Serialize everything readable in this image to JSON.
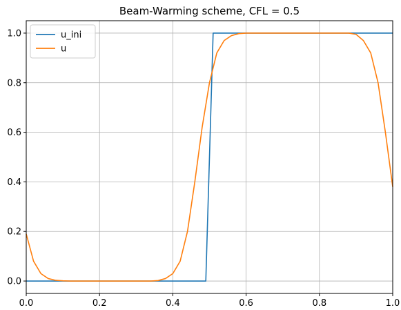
{
  "chart_data": {
    "type": "line",
    "title": "Beam-Warming scheme, CFL = 0.5",
    "xlabel": "",
    "ylabel": "",
    "xlim": [
      0,
      1
    ],
    "ylim": [
      -0.05,
      1.05
    ],
    "xticks": [
      0,
      0.2,
      0.4,
      0.6,
      0.8,
      1
    ],
    "xtick_labels": [
      "0.0",
      "0.2",
      "0.4",
      "0.6",
      "0.8",
      "1.0"
    ],
    "yticks": [
      0,
      0.2,
      0.4,
      0.6,
      0.8,
      1
    ],
    "ytick_labels": [
      "0.0",
      "0.2",
      "0.4",
      "0.6",
      "0.8",
      "1.0"
    ],
    "grid": true,
    "legend_position": "top-left",
    "series": [
      {
        "name": "u_ini",
        "color": "#1f77b4",
        "x": [
          0,
          0.49,
          0.51,
          1
        ],
        "y": [
          0,
          0,
          1,
          1
        ]
      },
      {
        "name": "u",
        "color": "#ff7f0e",
        "x": [
          0,
          0.02,
          0.04,
          0.06,
          0.08,
          0.1,
          0.12,
          0.14,
          0.16,
          0.18,
          0.2,
          0.22,
          0.24,
          0.26,
          0.28,
          0.3,
          0.32,
          0.34,
          0.36,
          0.38,
          0.4,
          0.42,
          0.44,
          0.46,
          0.48,
          0.5,
          0.52,
          0.54,
          0.56,
          0.58,
          0.6,
          0.62,
          0.64,
          0.66,
          0.68,
          0.7,
          0.72,
          0.74,
          0.76,
          0.78,
          0.8,
          0.82,
          0.84,
          0.86,
          0.88,
          0.9,
          0.92,
          0.94,
          0.96,
          0.98,
          1
        ],
        "y": [
          0.19,
          0.08,
          0.03,
          0.01,
          0.003,
          0.001,
          0,
          0,
          0,
          0,
          0,
          0,
          0,
          0,
          0,
          0,
          0,
          0,
          0.002,
          0.01,
          0.03,
          0.08,
          0.2,
          0.4,
          0.62,
          0.8,
          0.92,
          0.97,
          0.99,
          0.998,
          1,
          1,
          1,
          1,
          1,
          1,
          1,
          1,
          1,
          1,
          1,
          1,
          1,
          1,
          1,
          0.995,
          0.97,
          0.92,
          0.8,
          0.6,
          0.38
        ]
      }
    ]
  }
}
